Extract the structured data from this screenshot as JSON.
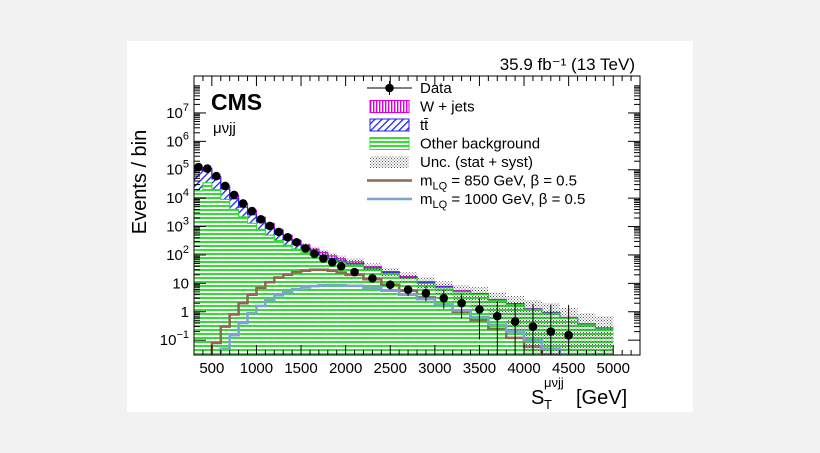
{
  "chart_data": {
    "type": "histogram",
    "header_right": "35.9 fb⁻¹ (13 TeV)",
    "experiment_label": "CMS",
    "channel_label": "μνjj",
    "ylabel": "Events / bin",
    "xlabel": "S_T^{μνjj} [GeV]",
    "xlabel_main": "S",
    "xlabel_sub": "T",
    "xlabel_sup": "μνjj",
    "xlabel_unit": "[GeV]",
    "xlim": [
      300,
      5300
    ],
    "ylim": [
      0.03,
      200000000
    ],
    "yscale": "log",
    "x_ticks": [
      500,
      1000,
      1500,
      2000,
      2500,
      3000,
      3500,
      4000,
      4500,
      5000
    ],
    "x_tick_labels": [
      "500",
      "1000",
      "1500",
      "2000",
      "2500",
      "3000",
      "3500",
      "4000",
      "4500",
      "5000"
    ],
    "y_ticks": [
      0.1,
      1,
      10,
      100,
      1000,
      10000,
      100000,
      1000000,
      10000000
    ],
    "y_tick_labels": [
      {
        "base": "10",
        "exp": "−1"
      },
      {
        "base": "1",
        "exp": ""
      },
      {
        "base": "10",
        "exp": ""
      },
      {
        "base": "10",
        "exp": "2"
      },
      {
        "base": "10",
        "exp": "3"
      },
      {
        "base": "10",
        "exp": "4"
      },
      {
        "base": "10",
        "exp": "5"
      },
      {
        "base": "10",
        "exp": "6"
      },
      {
        "base": "10",
        "exp": "7"
      }
    ],
    "bin_edges": [
      300,
      400,
      500,
      600,
      700,
      800,
      900,
      1000,
      1100,
      1200,
      1300,
      1400,
      1500,
      1600,
      1700,
      1800,
      1900,
      2000,
      2200,
      2400,
      2600,
      2800,
      3000,
      3200,
      3400,
      3600,
      3800,
      4000,
      4200,
      4400,
      4600,
      4800,
      5000
    ],
    "stack": [
      {
        "name": "Other background",
        "color": "#33dd33",
        "values": [
          18000,
          35000,
          20000,
          9000,
          4000,
          2200,
          1300,
          800,
          500,
          320,
          220,
          160,
          120,
          95,
          80,
          65,
          55,
          45,
          32,
          22,
          15,
          10,
          7,
          5,
          4,
          2.5,
          1.8,
          1.2,
          0.9,
          0.6,
          0.35,
          0.25
        ]
      },
      {
        "name": "tt̄",
        "color": "#2222ee",
        "values": [
          80000,
          60000,
          28000,
          12000,
          5500,
          2600,
          1300,
          700,
          380,
          210,
          120,
          70,
          40,
          25,
          16,
          10,
          6.5,
          4,
          2.5,
          1.6,
          1,
          0.6,
          0.35,
          0.2,
          0.12,
          0.08,
          0.05,
          0.03,
          0.02,
          0.01,
          0.01,
          0.01
        ]
      },
      {
        "name": "W + jets",
        "color": "#dd00dd",
        "values": [
          20000,
          15000,
          9000,
          5000,
          3000,
          1700,
          1000,
          600,
          380,
          230,
          150,
          95,
          62,
          40,
          27,
          18,
          12,
          8,
          4,
          2.2,
          1.3,
          0.8,
          0.5,
          0.3,
          0.2,
          0.12,
          0.08,
          0.05,
          0.03,
          0.02,
          0.015,
          0.01
        ]
      }
    ],
    "uncertainty": {
      "name": "Unc. (stat + syst)",
      "relative": [
        0.05,
        0.05,
        0.06,
        0.06,
        0.07,
        0.08,
        0.09,
        0.1,
        0.11,
        0.12,
        0.14,
        0.16,
        0.18,
        0.2,
        0.22,
        0.25,
        0.28,
        0.3,
        0.32,
        0.35,
        0.4,
        0.45,
        0.5,
        0.6,
        0.7,
        0.8,
        0.9,
        1.0,
        1.1,
        1.2,
        1.4,
        1.6
      ]
    },
    "data": {
      "name": "Data",
      "x": [
        350,
        450,
        550,
        650,
        750,
        850,
        950,
        1050,
        1150,
        1250,
        1350,
        1450,
        1550,
        1650,
        1750,
        1850,
        1950,
        2100,
        2300,
        2500,
        2700,
        2900,
        3100,
        3300,
        3500,
        3700,
        3900,
        4100,
        4300,
        4500
      ],
      "y": [
        125000,
        110000,
        60000,
        27000,
        13000,
        6500,
        3500,
        1800,
        1050,
        650,
        420,
        280,
        170,
        110,
        75,
        55,
        40,
        25,
        15,
        9,
        6,
        4.5,
        3,
        2,
        1.2,
        0.7,
        0.45,
        0.3,
        0.2,
        0.15
      ]
    },
    "signals": [
      {
        "name": "m_LQ = 850 GeV, β = 0.5",
        "legend_main": "m",
        "legend_sub": "LQ",
        "legend_rest": " = 850 GeV, β = 0.5",
        "color": "#8c6a50",
        "values": [
          0.02,
          0.02,
          0.08,
          0.3,
          0.8,
          2,
          4,
          7,
          11,
          16,
          20,
          25,
          28,
          30,
          30,
          28,
          24,
          20,
          14,
          9,
          5.5,
          3.2,
          1.8,
          1,
          0.5,
          0.25,
          0.12,
          0.06,
          0.03,
          0.02,
          0.02,
          0.02
        ]
      },
      {
        "name": "m_LQ = 1000 GeV, β = 0.5",
        "legend_main": "m",
        "legend_sub": "LQ",
        "legend_rest": " = 1000 GeV, β = 0.5",
        "color": "#7ca2d6",
        "values": [
          0.02,
          0.02,
          0.02,
          0.05,
          0.15,
          0.4,
          0.9,
          1.6,
          2.6,
          3.8,
          5,
          6.2,
          7.2,
          8,
          8.5,
          8.7,
          8.6,
          8.2,
          7,
          5.5,
          4,
          2.8,
          1.8,
          1.1,
          0.65,
          0.35,
          0.2,
          0.1,
          0.05,
          0.02,
          0.02,
          0.02
        ]
      }
    ],
    "legend": {
      "placement": "top-right",
      "entries": [
        "Data",
        "W + jets",
        "tt̄",
        "Other background",
        "Unc. (stat + syst)",
        "m_LQ = 850 GeV, β = 0.5",
        "m_LQ = 1000 GeV, β = 0.5"
      ]
    }
  }
}
